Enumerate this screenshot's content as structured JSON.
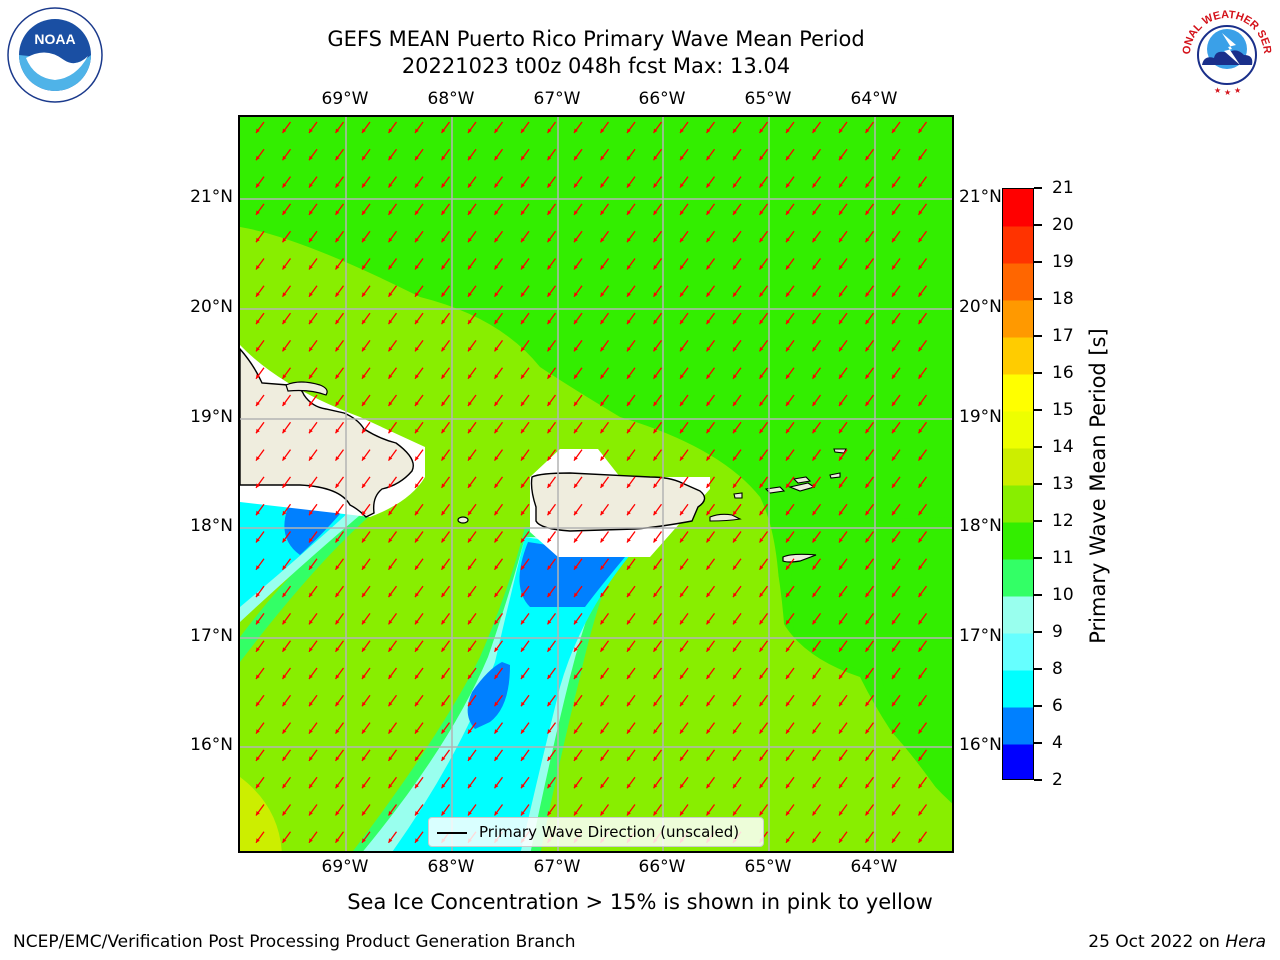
{
  "title": {
    "line1": "GEFS MEAN Puerto Rico Primary Wave Mean Period",
    "line2": "20221023 t00z 048h fcst   Max: 13.04"
  },
  "chart_data": {
    "type": "map",
    "projection": "lat-lon",
    "lon_range": [
      -70.0,
      -63.25
    ],
    "lat_range": [
      15.0,
      21.75
    ],
    "lon_ticks": [
      "69°W",
      "68°W",
      "67°W",
      "66°W",
      "65°W",
      "64°W"
    ],
    "lat_ticks": [
      "21°N",
      "20°N",
      "19°N",
      "18°N",
      "17°N",
      "16°N"
    ],
    "grid": true,
    "colorbar": {
      "label": "Primary Wave Mean Period [s]",
      "levels": [
        2,
        4,
        6,
        8,
        9,
        10,
        11,
        12,
        13,
        14,
        15,
        16,
        17,
        18,
        19,
        20,
        21
      ],
      "colors": [
        "#0000ff",
        "#0080ff",
        "#00ffff",
        "#66ffff",
        "#99ffee",
        "#33ff66",
        "#33ee00",
        "#88ee00",
        "#ccee00",
        "#eeff00",
        "#ffff00",
        "#ffcc00",
        "#ff9900",
        "#ff6600",
        "#ff3300",
        "#ff0000"
      ]
    },
    "vectors": {
      "label": "Primary Wave Direction (unscaled)",
      "color": "#ff0000",
      "direction": "from north-northeast, pointing south-southwest"
    },
    "land_color": "#efedde"
  },
  "footnote": "Sea Ice Concentration > 15% is shown in pink to yellow",
  "credit_left": "NCEP/EMC/Verification Post Processing Product Generation Branch",
  "credit_right_date": "25 Oct 2022 on",
  "credit_right_host": "Hera",
  "logos": {
    "noaa_text": "NOAA",
    "nws_text": "NATIONAL WEATHER SERVICE"
  }
}
